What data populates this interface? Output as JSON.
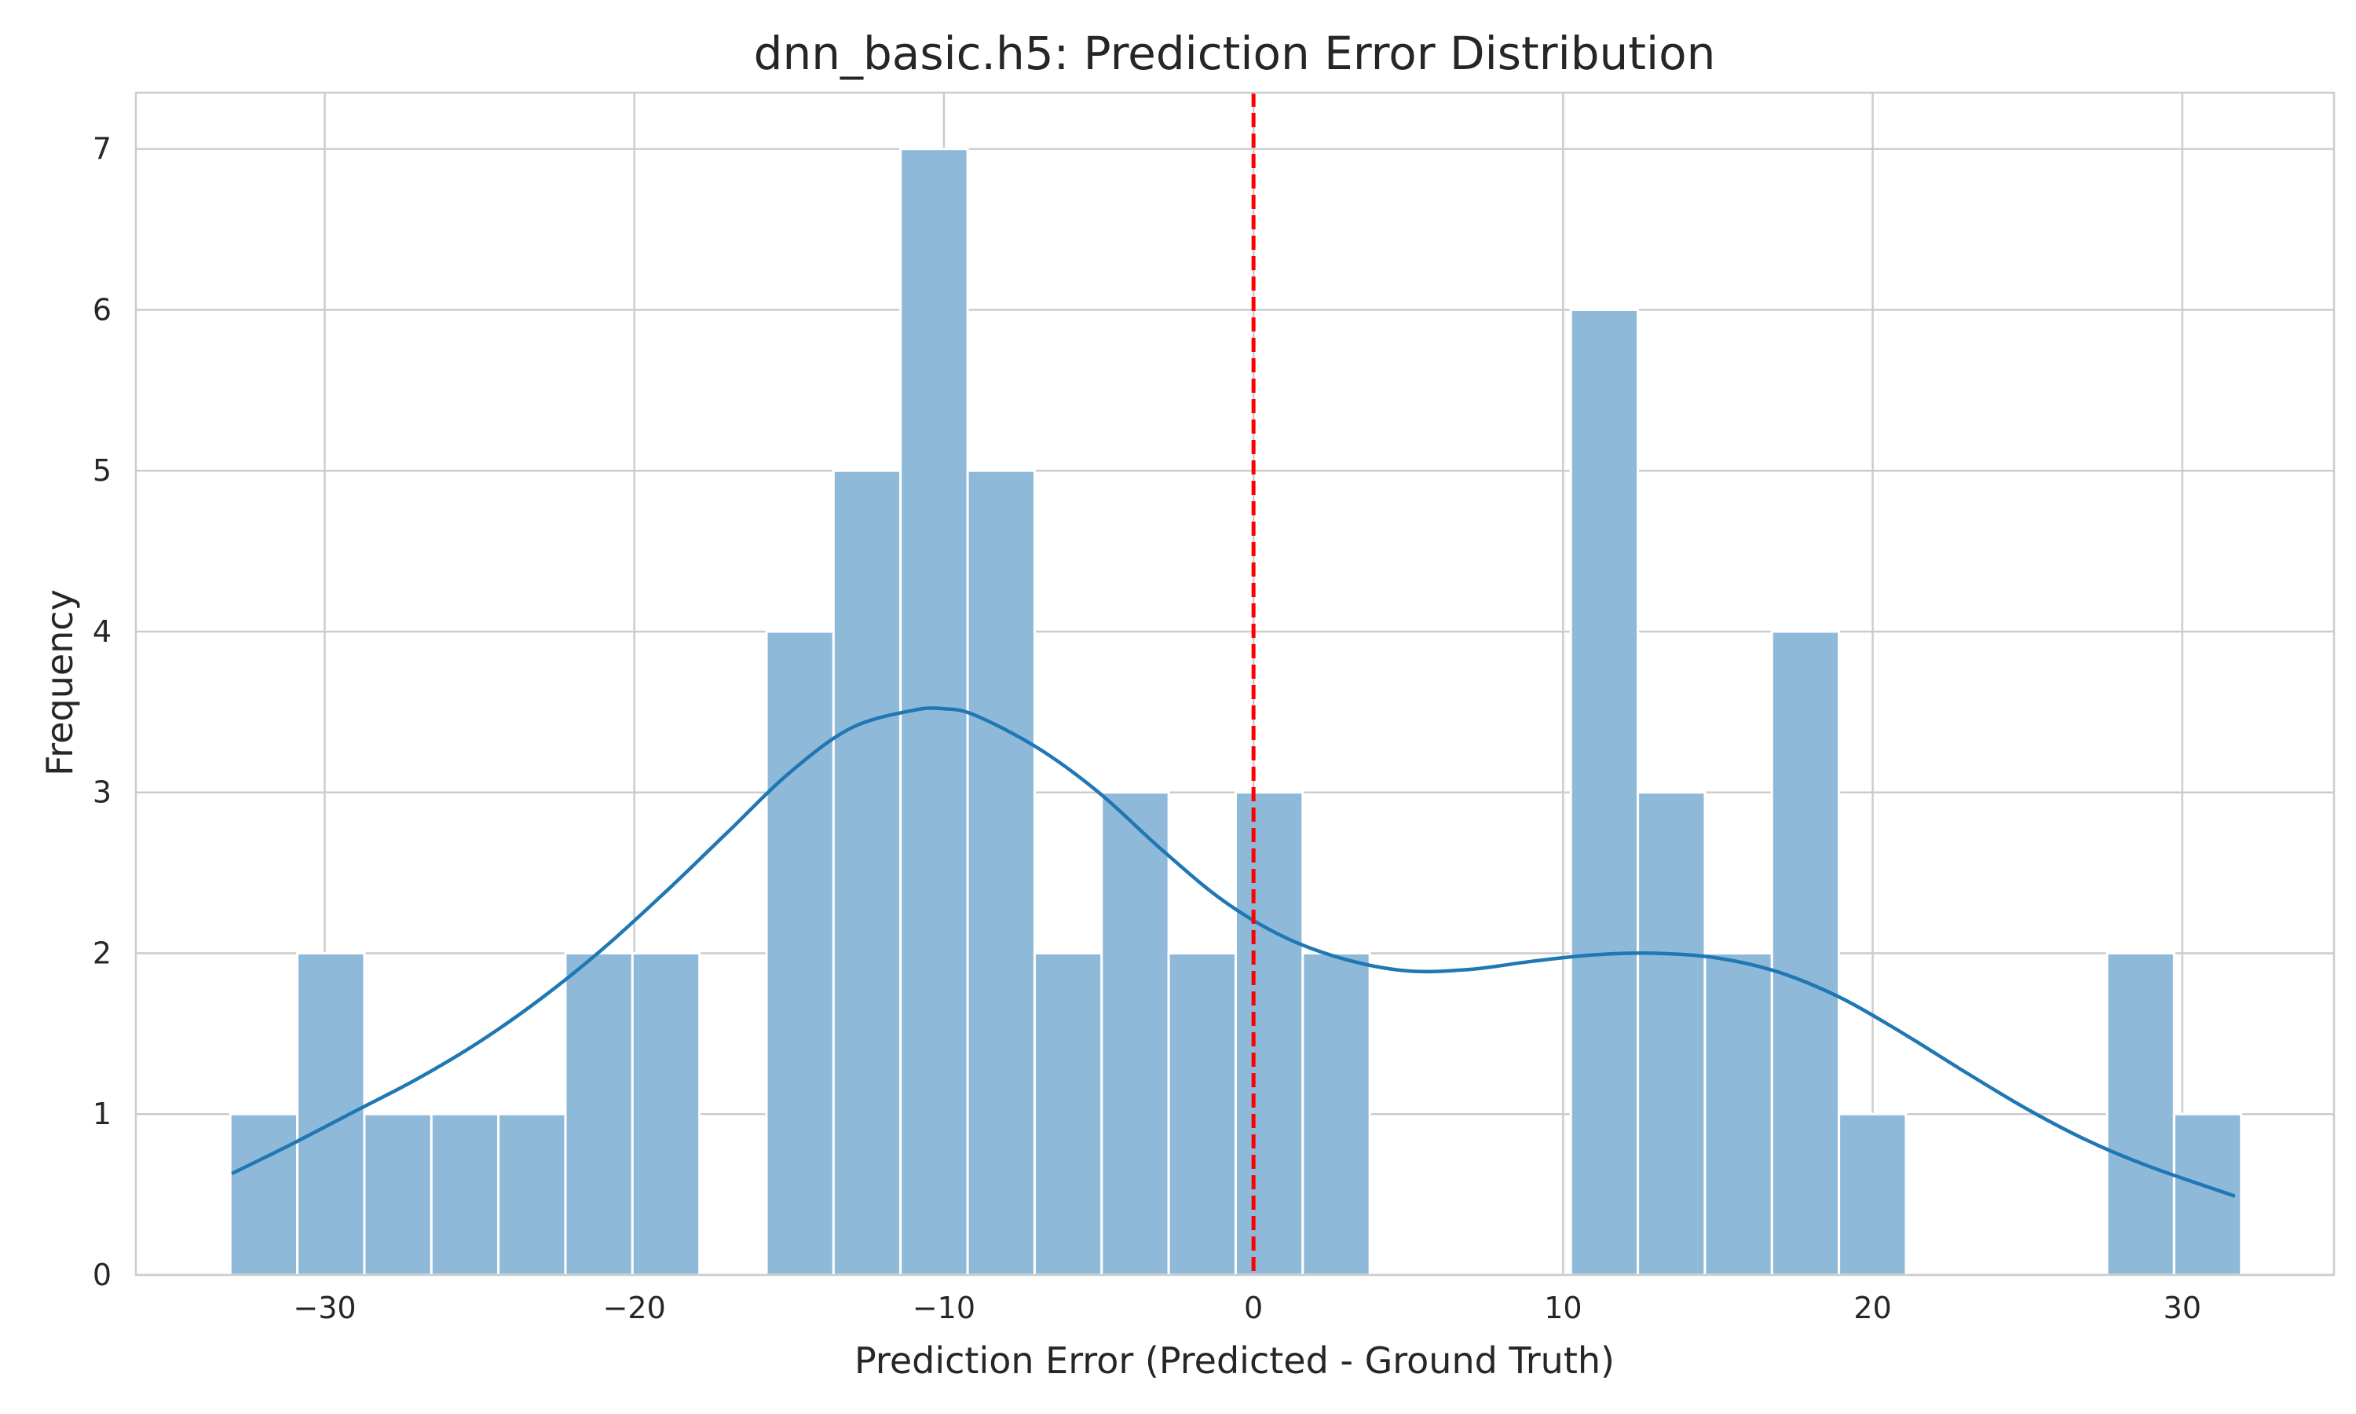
{
  "chart_data": {
    "type": "bar",
    "title": "dnn_basic.h5: Prediction Error Distribution",
    "xlabel": "Prediction Error (Predicted - Ground Truth)",
    "ylabel": "Frequency",
    "xlim": [
      -36.1,
      34.9
    ],
    "ylim": [
      0,
      7.35
    ],
    "xticks": [
      -30,
      -20,
      -10,
      0,
      10,
      20,
      30
    ],
    "xtick_labels": [
      "−30",
      "−20",
      "−10",
      "0",
      "10",
      "20",
      "30"
    ],
    "yticks": [
      0,
      1,
      2,
      3,
      4,
      5,
      6,
      7
    ],
    "ytick_labels": [
      "0",
      "1",
      "2",
      "3",
      "4",
      "5",
      "6",
      "7"
    ],
    "grid": true,
    "bin_start": -33.05,
    "bin_width": 2.165,
    "counts": [
      1,
      2,
      1,
      1,
      1,
      2,
      2,
      0,
      4,
      5,
      7,
      5,
      2,
      3,
      2,
      3,
      2,
      0,
      0,
      0,
      6,
      3,
      2,
      4,
      1,
      0,
      0,
      0,
      2,
      1
    ],
    "bar_color": "#8fb9d9",
    "kde": {
      "name": "KDE",
      "color": "#1f77b4",
      "x": [
        -33,
        -31,
        -29,
        -27,
        -25,
        -23,
        -21,
        -19,
        -17,
        -15,
        -13,
        -11,
        -10,
        -9,
        -7,
        -5,
        -3,
        -1,
        1,
        3,
        5,
        7,
        9,
        11,
        13,
        15,
        17,
        19,
        21,
        23,
        25,
        27,
        29,
        31.7
      ],
      "y": [
        0.63,
        0.82,
        1.02,
        1.22,
        1.45,
        1.72,
        2.03,
        2.38,
        2.75,
        3.12,
        3.4,
        3.51,
        3.52,
        3.48,
        3.28,
        3.0,
        2.65,
        2.33,
        2.1,
        1.96,
        1.89,
        1.9,
        1.95,
        1.99,
        2.0,
        1.97,
        1.88,
        1.72,
        1.5,
        1.26,
        1.03,
        0.83,
        0.67,
        0.49
      ]
    },
    "reference_line": {
      "x": 0,
      "color": "#ff0000",
      "style": "dashed"
    }
  }
}
